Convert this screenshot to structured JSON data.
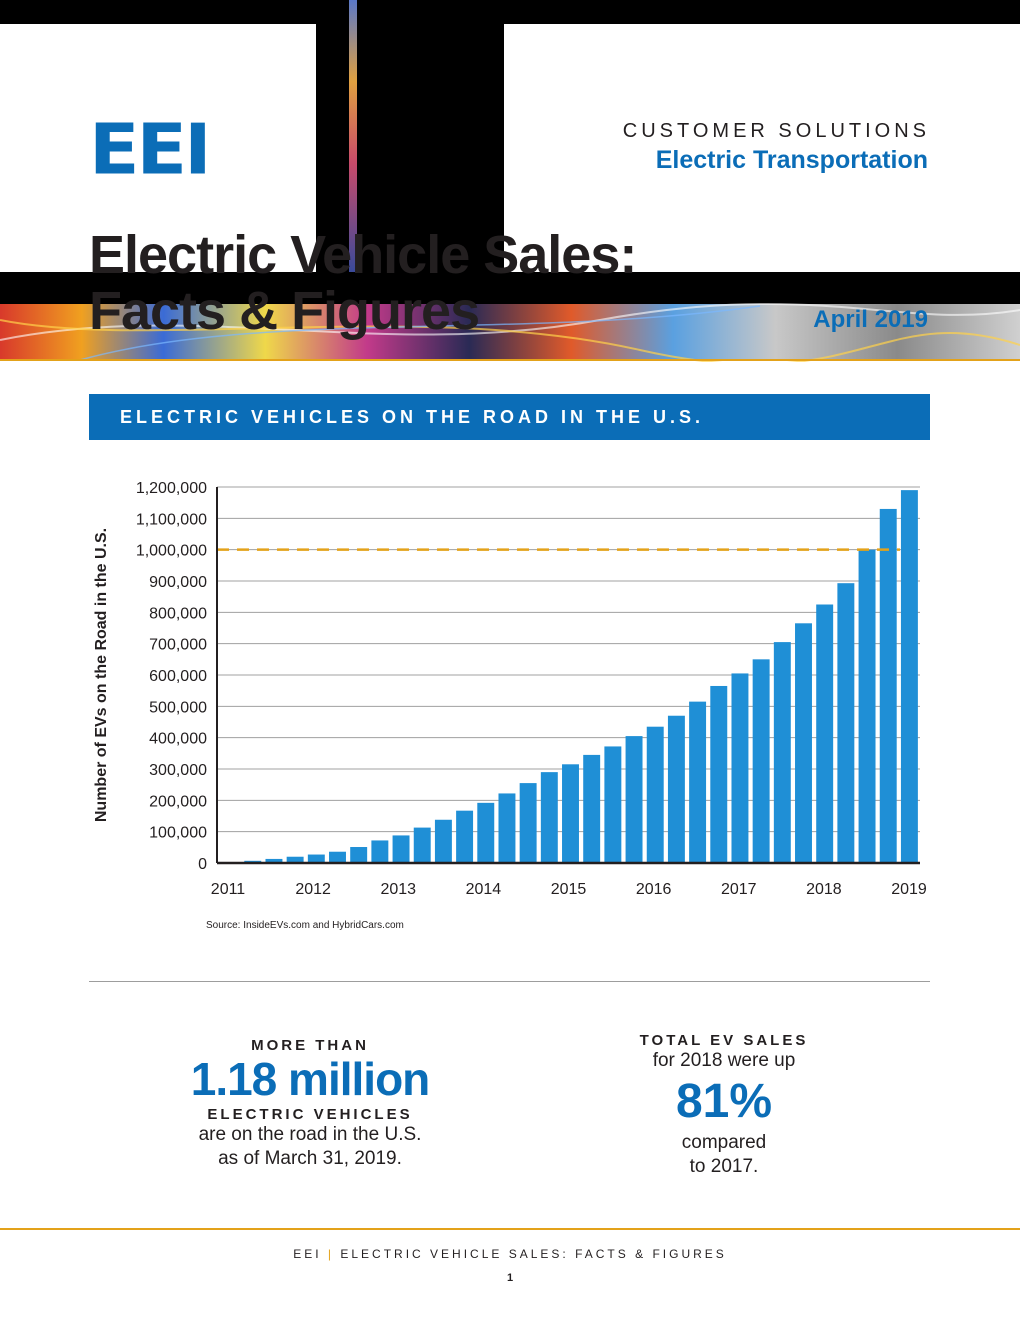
{
  "header": {
    "logo": "EEI",
    "kicker": "CUSTOMER SOLUTIONS",
    "subkicker": "Electric Transportation",
    "title_line1": "Electric Vehicle Sales:",
    "title_line2": "Facts & Figures",
    "date": "April 2019"
  },
  "banner": {
    "label": "ELECTRIC VEHICLES ON THE ROAD IN THE U.S."
  },
  "chart_data": {
    "type": "bar",
    "title": "ELECTRIC VEHICLES ON THE ROAD IN THE U.S.",
    "xlabel": "",
    "ylabel": "Number of EVs on the Road in the U.S.",
    "ylim": [
      0,
      1200000
    ],
    "yticks": [
      "0",
      "100,000",
      "200,000",
      "300,000",
      "400,000",
      "500,000",
      "600,000",
      "700,000",
      "800,000",
      "900,000",
      "1,000,000",
      "1,100,000",
      "1,200,000"
    ],
    "xticks": [
      "2011",
      "2012",
      "2013",
      "2014",
      "2015",
      "2016",
      "2017",
      "2018",
      "2019"
    ],
    "reference_line": {
      "value": 1000000,
      "style": "dashed",
      "color": "#e3a21a"
    },
    "bar_color": "#1f8fd6",
    "values": [
      3000,
      7000,
      13000,
      20000,
      27000,
      36000,
      51000,
      72000,
      88000,
      113000,
      138000,
      167000,
      192000,
      222000,
      255000,
      290000,
      315000,
      345000,
      372000,
      405000,
      435000,
      470000,
      515000,
      565000,
      605000,
      650000,
      705000,
      765000,
      825000,
      893000,
      1000000,
      1130000,
      1190000
    ]
  },
  "source": "Source: InsideEVs.com and HybridCars.com",
  "stats": {
    "left": {
      "cap1": "MORE THAN",
      "big": "1.18 million",
      "cap2": "ELECTRIC VEHICLES",
      "line1": "are on the road in the U.S.",
      "line2": "as of March 31, 2019."
    },
    "right": {
      "cap1": "TOTAL EV SALES",
      "line0": "for 2018 were up",
      "big": "81%",
      "line1": "compared",
      "line2": "to 2017."
    }
  },
  "footer": {
    "brand": "EEI",
    "separator": "|",
    "title": "ELECTRIC VEHICLE SALES: FACTS & FIGURES",
    "page": "1"
  },
  "colors": {
    "brand_blue": "#0b6db7",
    "accent_orange": "#e3a21a",
    "bar_blue": "#1f8fd6"
  }
}
